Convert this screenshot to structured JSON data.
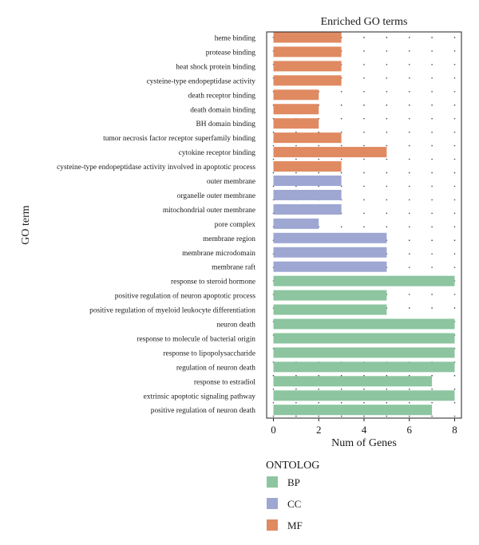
{
  "chart_data": {
    "type": "bar",
    "orientation": "horizontal",
    "title": "Enriched GO terms",
    "xlabel": "Num of Genes",
    "ylabel": "GO term",
    "xlim": [
      -0.3,
      8.3
    ],
    "xticks": [
      0,
      2,
      4,
      6,
      8
    ],
    "grid": "dotted",
    "legend": {
      "title": "ONTOLOG",
      "position": "bottom-left",
      "entries": [
        {
          "name": "BP",
          "color": "#8cc5a0"
        },
        {
          "name": "CC",
          "color": "#9ea6d2"
        },
        {
          "name": "MF",
          "color": "#e08a62"
        }
      ]
    },
    "bars": [
      {
        "term": "heme binding",
        "value": 3,
        "ontology": "MF"
      },
      {
        "term": "protease binding",
        "value": 3,
        "ontology": "MF"
      },
      {
        "term": "heat shock protein binding",
        "value": 3,
        "ontology": "MF"
      },
      {
        "term": "cysteine-type endopeptidase activity",
        "value": 3,
        "ontology": "MF"
      },
      {
        "term": "death receptor binding",
        "value": 2,
        "ontology": "MF"
      },
      {
        "term": "death domain binding",
        "value": 2,
        "ontology": "MF"
      },
      {
        "term": "BH domain binding",
        "value": 2,
        "ontology": "MF"
      },
      {
        "term": "tumor necrosis factor receptor superfamily binding",
        "value": 3,
        "ontology": "MF"
      },
      {
        "term": "cytokine receptor binding",
        "value": 5,
        "ontology": "MF"
      },
      {
        "term": "cysteine-type endopeptidase activity involved in apoptotic process",
        "value": 3,
        "ontology": "MF"
      },
      {
        "term": "outer membrane",
        "value": 3,
        "ontology": "CC"
      },
      {
        "term": "organelle outer membrane",
        "value": 3,
        "ontology": "CC"
      },
      {
        "term": "mitochondrial outer membrane",
        "value": 3,
        "ontology": "CC"
      },
      {
        "term": "pore complex",
        "value": 2,
        "ontology": "CC"
      },
      {
        "term": "membrane region",
        "value": 5,
        "ontology": "CC"
      },
      {
        "term": "membrane microdomain",
        "value": 5,
        "ontology": "CC"
      },
      {
        "term": "membrane raft",
        "value": 5,
        "ontology": "CC"
      },
      {
        "term": "response to steroid hormone",
        "value": 8,
        "ontology": "BP"
      },
      {
        "term": "positive regulation of neuron apoptotic process",
        "value": 5,
        "ontology": "BP"
      },
      {
        "term": "positive regulation of myeloid leukocyte differentiation",
        "value": 5,
        "ontology": "BP"
      },
      {
        "term": "neuron death",
        "value": 8,
        "ontology": "BP"
      },
      {
        "term": "response to molecule of bacterial origin",
        "value": 8,
        "ontology": "BP"
      },
      {
        "term": "response to lipopolysaccharide",
        "value": 8,
        "ontology": "BP"
      },
      {
        "term": "regulation of neuron death",
        "value": 8,
        "ontology": "BP"
      },
      {
        "term": "response to estradiol",
        "value": 7,
        "ontology": "BP"
      },
      {
        "term": "extrinsic apoptotic signaling pathway",
        "value": 8,
        "ontology": "BP"
      },
      {
        "term": "positive regulation of neuron death",
        "value": 7,
        "ontology": "BP"
      }
    ]
  }
}
